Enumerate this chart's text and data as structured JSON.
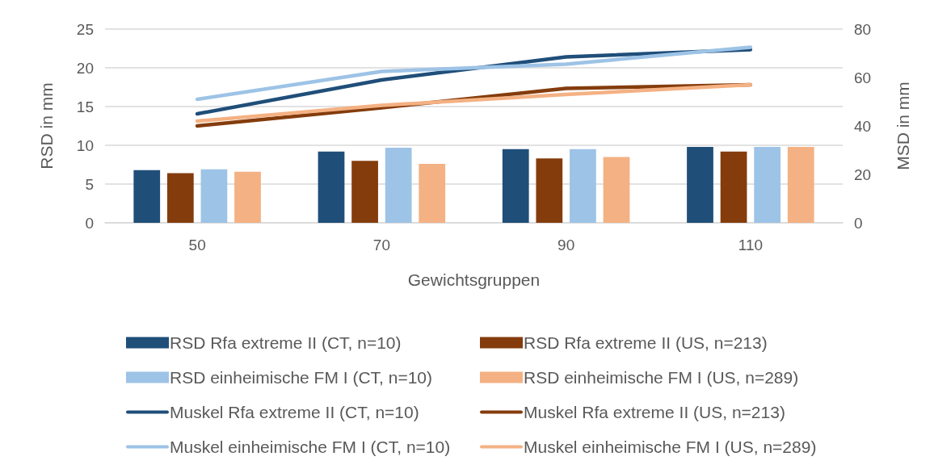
{
  "chart_data": {
    "type": "bar",
    "xlabel": "Gewichtsgruppen",
    "ylabel": "RSD in mm",
    "y2label": "MSD in mm",
    "categories": [
      "50",
      "70",
      "90",
      "110"
    ],
    "series": [
      {
        "name": "RSD Rfa extreme II (CT, n=10)",
        "color": "#1f4e79",
        "values": [
          6.8,
          9.2,
          9.5,
          9.8
        ]
      },
      {
        "name": "RSD Rfa extreme II (US, n=213)",
        "color": "#843c0c",
        "values": [
          6.4,
          8.0,
          8.3,
          9.2
        ]
      },
      {
        "name": "RSD einheimische FM I (CT, n=10)",
        "color": "#9dc3e6",
        "values": [
          6.9,
          9.7,
          9.5,
          9.8
        ]
      },
      {
        "name": "RSD einheimische FM I (US, n=289)",
        "color": "#f4b183",
        "values": [
          6.6,
          7.6,
          8.5,
          9.8
        ]
      },
      {
        "name": "Muskel Rfa extreme II (CT, n=10)",
        "type": "line",
        "axis": "y2",
        "color": "#1f4e79",
        "values": [
          45,
          59,
          68.5,
          71.5
        ]
      },
      {
        "name": "Muskel Rfa extreme II (US, n=213)",
        "type": "line",
        "axis": "y2",
        "color": "#843c0c",
        "values": [
          40,
          47.5,
          55.5,
          57
        ]
      },
      {
        "name": "Muskel einheimische FM I (CT, n=10)",
        "type": "line",
        "axis": "y2",
        "color": "#9dc3e6",
        "values": [
          51,
          62.5,
          65.5,
          72.5
        ]
      },
      {
        "name": "Muskel einheimische FM I (US, n=289)",
        "type": "line",
        "axis": "y2",
        "color": "#f4b183",
        "values": [
          42,
          48.5,
          53,
          57
        ]
      }
    ],
    "ylim": [
      0,
      25
    ],
    "yticks": [
      0,
      5,
      10,
      15,
      20,
      25
    ],
    "y2lim": [
      0,
      80
    ],
    "y2ticks": [
      0,
      20,
      40,
      60,
      80
    ],
    "grid": "y",
    "legend": "bottom",
    "marker": "none",
    "line_style": "solid"
  }
}
